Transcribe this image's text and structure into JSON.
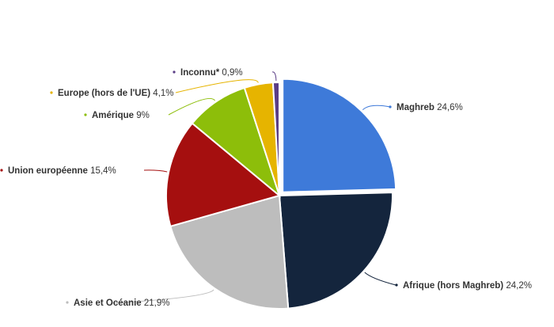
{
  "chart_data": {
    "type": "pie",
    "title": "",
    "unit": "%",
    "slices": [
      {
        "label": "Maghreb",
        "value": 24.6,
        "value_label": "24,6%",
        "color": "#3e7ad9"
      },
      {
        "label": "Afrique (hors Maghreb)",
        "value": 24.2,
        "value_label": "24,2%",
        "color": "#14253d"
      },
      {
        "label": "Asie et Océanie",
        "value": 21.9,
        "value_label": "21,9%",
        "color": "#bdbdbd"
      },
      {
        "label": "Union européenne",
        "value": 15.4,
        "value_label": "15,4%",
        "color": "#a50f0f"
      },
      {
        "label": "Amérique",
        "value": 9,
        "value_label": "9%",
        "color": "#8dbe0a"
      },
      {
        "label": "Europe (hors de l'UE)",
        "value": 4.1,
        "value_label": "4,1%",
        "color": "#e6b400"
      },
      {
        "label": "Inconnu*",
        "value": 0.9,
        "value_label": "0,9%",
        "color": "#5a3d86"
      }
    ],
    "exploded": "Maghreb",
    "legend": "none"
  }
}
